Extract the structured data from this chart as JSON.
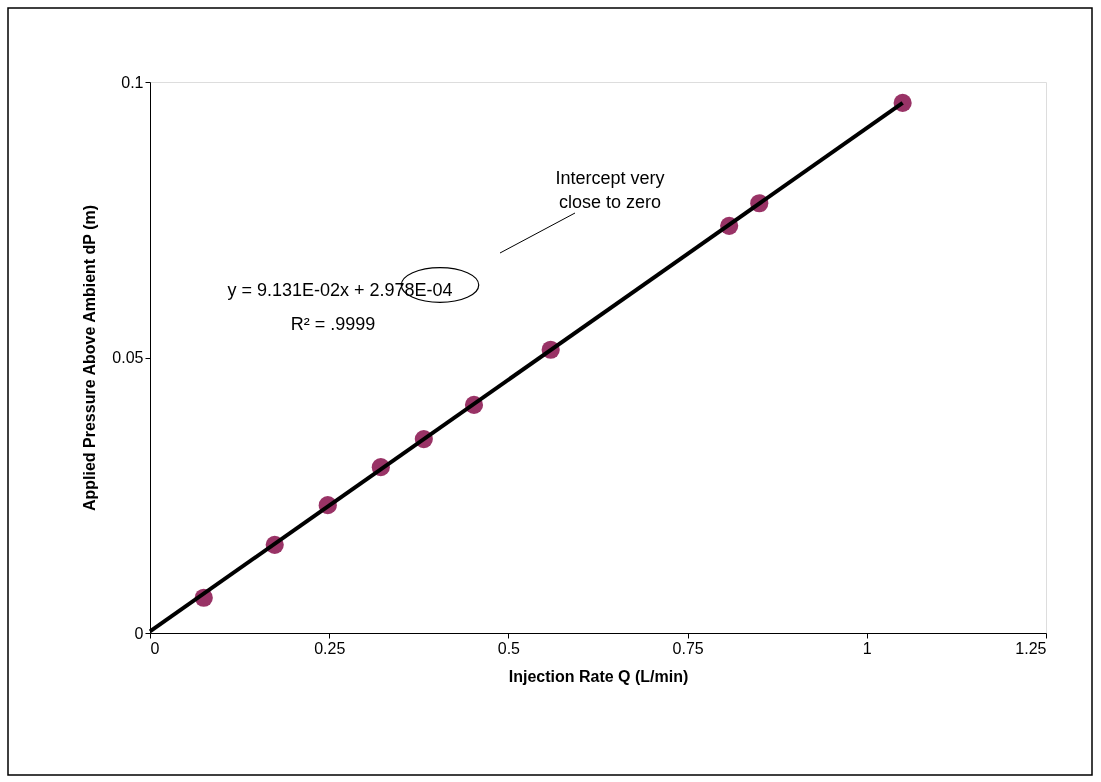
{
  "chart_data": {
    "type": "scatter",
    "xlabel": "Injection Rate Q (L/min)",
    "ylabel": "Applied Pressure Above Ambient dP (m)",
    "xlim": [
      0,
      1.25
    ],
    "xticks": [
      0,
      0.25,
      0.5,
      0.75,
      1,
      1.25
    ],
    "ylim": [
      0,
      0.1
    ],
    "yticks": [
      0,
      0.05,
      0.1
    ],
    "marker": "circle",
    "x": [
      0.075,
      0.174,
      0.248,
      0.322,
      0.382,
      0.452,
      0.559,
      0.808,
      0.85,
      1.05
    ],
    "series": [
      {
        "color": "#993366",
        "values": [
          0.0064,
          0.016,
          0.0232,
          0.0301,
          0.0352,
          0.0414,
          0.0514,
          0.0739,
          0.078,
          0.0962
        ]
      },
      {
        "type": "line",
        "color": "#000000",
        "marker": "none",
        "line_style": "solid",
        "x": [
          0,
          1.05
        ],
        "values": [
          0.0003,
          0.0962
        ]
      }
    ],
    "annotations": [
      "y = 9.131E-02x + 2.978E-04",
      "R² = .9999",
      "Intercept very close to zero"
    ]
  }
}
